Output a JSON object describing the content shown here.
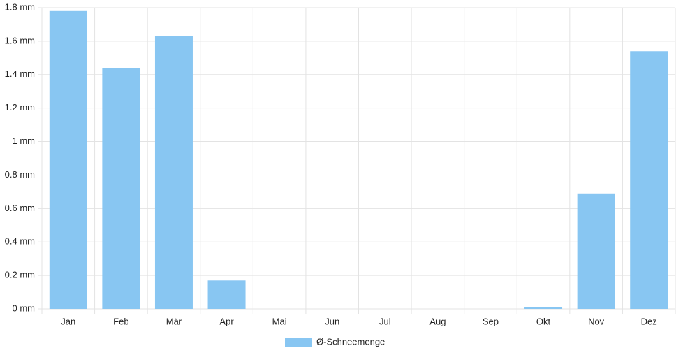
{
  "chart_data": {
    "type": "bar",
    "categories": [
      "Jan",
      "Feb",
      "Mär",
      "Apr",
      "Mai",
      "Jun",
      "Jul",
      "Aug",
      "Sep",
      "Okt",
      "Nov",
      "Dez"
    ],
    "series": [
      {
        "name": "Ø-Schneemenge",
        "color": "#88c6f2",
        "values": [
          1.78,
          1.44,
          1.63,
          0.17,
          0,
          0,
          0,
          0,
          0,
          0.01,
          0.69,
          1.54
        ]
      }
    ],
    "ylim": [
      0,
      1.8
    ],
    "yticks": [
      {
        "value": 0,
        "label": "0 mm"
      },
      {
        "value": 0.2,
        "label": "0.2 mm"
      },
      {
        "value": 0.4,
        "label": "0.4 mm"
      },
      {
        "value": 0.6,
        "label": "0.6 mm"
      },
      {
        "value": 0.8,
        "label": "0.8 mm"
      },
      {
        "value": 1,
        "label": "1 mm"
      },
      {
        "value": 1.2,
        "label": "1.2 mm"
      },
      {
        "value": 1.4,
        "label": "1.4 mm"
      },
      {
        "value": 1.6,
        "label": "1.6 mm"
      },
      {
        "value": 1.8,
        "label": "1.8 mm"
      }
    ],
    "grid": true,
    "legend": "bottom"
  }
}
